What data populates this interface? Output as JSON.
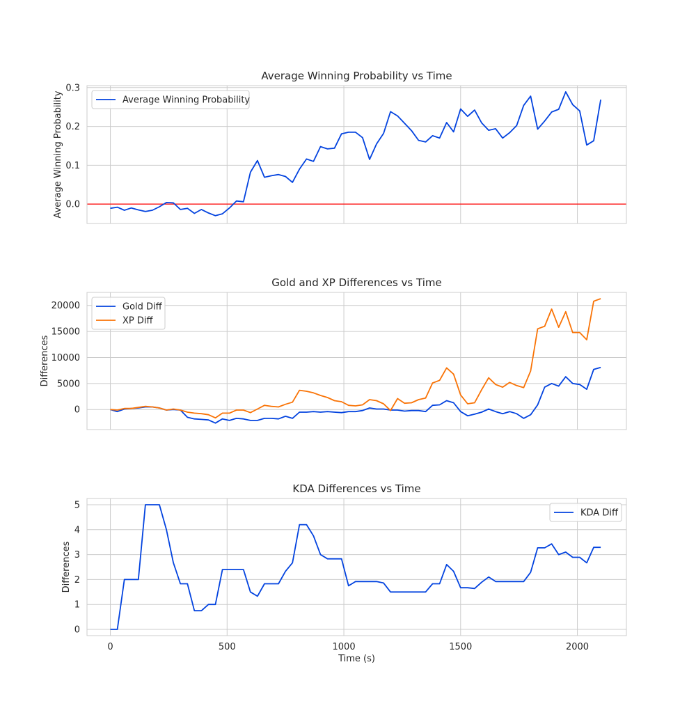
{
  "chart_data": [
    {
      "type": "line",
      "title": "Average Winning Probability vs Time",
      "xlabel": "",
      "ylabel": "Average Winning Probability",
      "xlim": [
        -100,
        2210
      ],
      "ylim": [
        -0.05,
        0.305
      ],
      "xticks": [
        0,
        500,
        1000,
        1500,
        2000
      ],
      "xtick_labels_visible": false,
      "yticks": [
        0.0,
        0.1,
        0.2,
        0.3
      ],
      "ytick_labels": [
        "0.0",
        "0.1",
        "0.2",
        "0.3"
      ],
      "grid": true,
      "legend_loc": "upper-left",
      "hline": {
        "y": 0.0,
        "color": "#ff0000"
      },
      "x": [
        0,
        30,
        60,
        90,
        120,
        150,
        180,
        210,
        240,
        270,
        300,
        330,
        360,
        390,
        420,
        450,
        480,
        510,
        540,
        570,
        600,
        630,
        660,
        690,
        720,
        750,
        780,
        810,
        840,
        870,
        900,
        930,
        960,
        990,
        1020,
        1050,
        1080,
        1110,
        1140,
        1170,
        1200,
        1230,
        1260,
        1290,
        1320,
        1350,
        1380,
        1410,
        1440,
        1470,
        1500,
        1530,
        1560,
        1590,
        1620,
        1650,
        1680,
        1710,
        1740,
        1770,
        1800,
        1830,
        1860,
        1890,
        1920,
        1950,
        1980,
        2010,
        2040,
        2070,
        2100
      ],
      "series": [
        {
          "name": "Average Winning Probability",
          "color": "#0343df",
          "values": [
            -0.011,
            -0.008,
            -0.016,
            -0.01,
            -0.015,
            -0.019,
            -0.016,
            -0.007,
            0.004,
            0.003,
            -0.014,
            -0.011,
            -0.024,
            -0.014,
            -0.023,
            -0.03,
            -0.025,
            -0.01,
            0.008,
            0.006,
            0.082,
            0.112,
            0.069,
            0.073,
            0.076,
            0.071,
            0.056,
            0.09,
            0.116,
            0.11,
            0.148,
            0.142,
            0.144,
            0.181,
            0.185,
            0.185,
            0.171,
            0.115,
            0.155,
            0.182,
            0.238,
            0.227,
            0.208,
            0.189,
            0.164,
            0.16,
            0.176,
            0.17,
            0.21,
            0.186,
            0.245,
            0.226,
            0.242,
            0.209,
            0.19,
            0.194,
            0.17,
            0.184,
            0.202,
            0.254,
            0.278,
            0.193,
            0.214,
            0.237,
            0.244,
            0.289,
            0.256,
            0.24,
            0.152,
            0.163,
            0.269
          ]
        }
      ]
    },
    {
      "type": "line",
      "title": "Gold and XP Differences vs Time",
      "xlabel": "",
      "ylabel": "Differences",
      "xlim": [
        -100,
        2210
      ],
      "ylim": [
        -3850,
        22500
      ],
      "xticks": [
        0,
        500,
        1000,
        1500,
        2000
      ],
      "xtick_labels_visible": false,
      "yticks": [
        0,
        5000,
        10000,
        15000,
        20000
      ],
      "ytick_labels": [
        "0",
        "5000",
        "10000",
        "15000",
        "20000"
      ],
      "grid": true,
      "legend_loc": "upper-left",
      "x": [
        0,
        30,
        60,
        90,
        120,
        150,
        180,
        210,
        240,
        270,
        300,
        330,
        360,
        390,
        420,
        450,
        480,
        510,
        540,
        570,
        600,
        630,
        660,
        690,
        720,
        750,
        780,
        810,
        840,
        870,
        900,
        930,
        960,
        990,
        1020,
        1050,
        1080,
        1110,
        1140,
        1170,
        1200,
        1230,
        1260,
        1290,
        1320,
        1350,
        1380,
        1410,
        1440,
        1470,
        1500,
        1530,
        1560,
        1590,
        1620,
        1650,
        1680,
        1710,
        1740,
        1770,
        1800,
        1830,
        1860,
        1890,
        1920,
        1950,
        1980,
        2010,
        2040,
        2070,
        2100
      ],
      "series": [
        {
          "name": "Gold Diff",
          "color": "#0343df",
          "values": [
            0,
            -400,
            100,
            200,
            300,
            500,
            500,
            300,
            -100,
            0,
            -100,
            -1500,
            -1800,
            -1900,
            -2000,
            -2600,
            -1800,
            -2100,
            -1700,
            -1800,
            -2100,
            -2100,
            -1700,
            -1700,
            -1800,
            -1300,
            -1700,
            -500,
            -500,
            -400,
            -500,
            -400,
            -500,
            -600,
            -400,
            -400,
            -200,
            300,
            100,
            100,
            -100,
            -100,
            -300,
            -200,
            -200,
            -400,
            800,
            900,
            1700,
            1300,
            -400,
            -1200,
            -900,
            -500,
            100,
            -400,
            -800,
            -400,
            -800,
            -1700,
            -1000,
            900,
            4300,
            5000,
            4500,
            6300,
            5000,
            4800,
            3900,
            7700,
            8100
          ]
        },
        {
          "name": "XP Diff",
          "color": "#f97306",
          "values": [
            0,
            -100,
            200,
            200,
            400,
            600,
            500,
            300,
            -100,
            100,
            -100,
            -500,
            -700,
            -800,
            -1000,
            -1600,
            -700,
            -700,
            -100,
            -100,
            -600,
            100,
            800,
            600,
            500,
            1000,
            1400,
            3700,
            3500,
            3200,
            2700,
            2300,
            1700,
            1500,
            800,
            700,
            900,
            1900,
            1700,
            1100,
            -200,
            2100,
            1200,
            1300,
            1900,
            2200,
            5100,
            5600,
            8000,
            6800,
            2800,
            1100,
            1300,
            3800,
            6100,
            4800,
            4300,
            5200,
            4600,
            4200,
            7400,
            15500,
            16000,
            19300,
            15800,
            18800,
            14800,
            14800,
            13400,
            20800,
            21300
          ]
        }
      ]
    },
    {
      "type": "line",
      "title": "KDA Differences vs Time",
      "xlabel": "Time (s)",
      "ylabel": "Differences",
      "xlim": [
        -100,
        2210
      ],
      "ylim": [
        -0.25,
        5.25
      ],
      "xticks": [
        0,
        500,
        1000,
        1500,
        2000
      ],
      "xtick_labels": [
        "0",
        "500",
        "1000",
        "1500",
        "2000"
      ],
      "yticks": [
        0,
        1,
        2,
        3,
        4,
        5
      ],
      "ytick_labels": [
        "0",
        "1",
        "2",
        "3",
        "4",
        "5"
      ],
      "grid": true,
      "legend_loc": "upper-right",
      "x": [
        0,
        30,
        60,
        90,
        120,
        150,
        180,
        210,
        240,
        270,
        300,
        330,
        360,
        390,
        420,
        450,
        480,
        510,
        540,
        570,
        600,
        630,
        660,
        690,
        720,
        750,
        780,
        810,
        840,
        870,
        900,
        930,
        960,
        990,
        1020,
        1050,
        1080,
        1110,
        1140,
        1170,
        1200,
        1230,
        1260,
        1290,
        1320,
        1350,
        1380,
        1410,
        1440,
        1470,
        1500,
        1530,
        1560,
        1590,
        1620,
        1650,
        1680,
        1710,
        1740,
        1770,
        1800,
        1830,
        1860,
        1890,
        1920,
        1950,
        1980,
        2010,
        2040,
        2070,
        2100
      ],
      "series": [
        {
          "name": "KDA Diff",
          "color": "#0343df",
          "values": [
            0,
            0,
            2,
            2,
            2,
            5,
            5,
            5,
            4,
            2.67,
            1.83,
            1.83,
            0.75,
            0.75,
            1,
            1,
            2.4,
            2.4,
            2.4,
            2.4,
            1.5,
            1.33,
            1.83,
            1.83,
            1.83,
            2.33,
            2.67,
            4.2,
            4.2,
            3.75,
            3,
            2.83,
            2.83,
            2.83,
            1.75,
            1.92,
            1.92,
            1.92,
            1.92,
            1.86,
            1.5,
            1.5,
            1.5,
            1.5,
            1.5,
            1.5,
            1.83,
            1.83,
            2.6,
            2.33,
            1.67,
            1.67,
            1.64,
            1.89,
            2.1,
            1.92,
            1.92,
            1.92,
            1.92,
            1.92,
            2.29,
            3.27,
            3.27,
            3.43,
            3,
            3.1,
            2.89,
            2.89,
            2.67,
            3.29,
            3.29
          ]
        }
      ]
    }
  ]
}
